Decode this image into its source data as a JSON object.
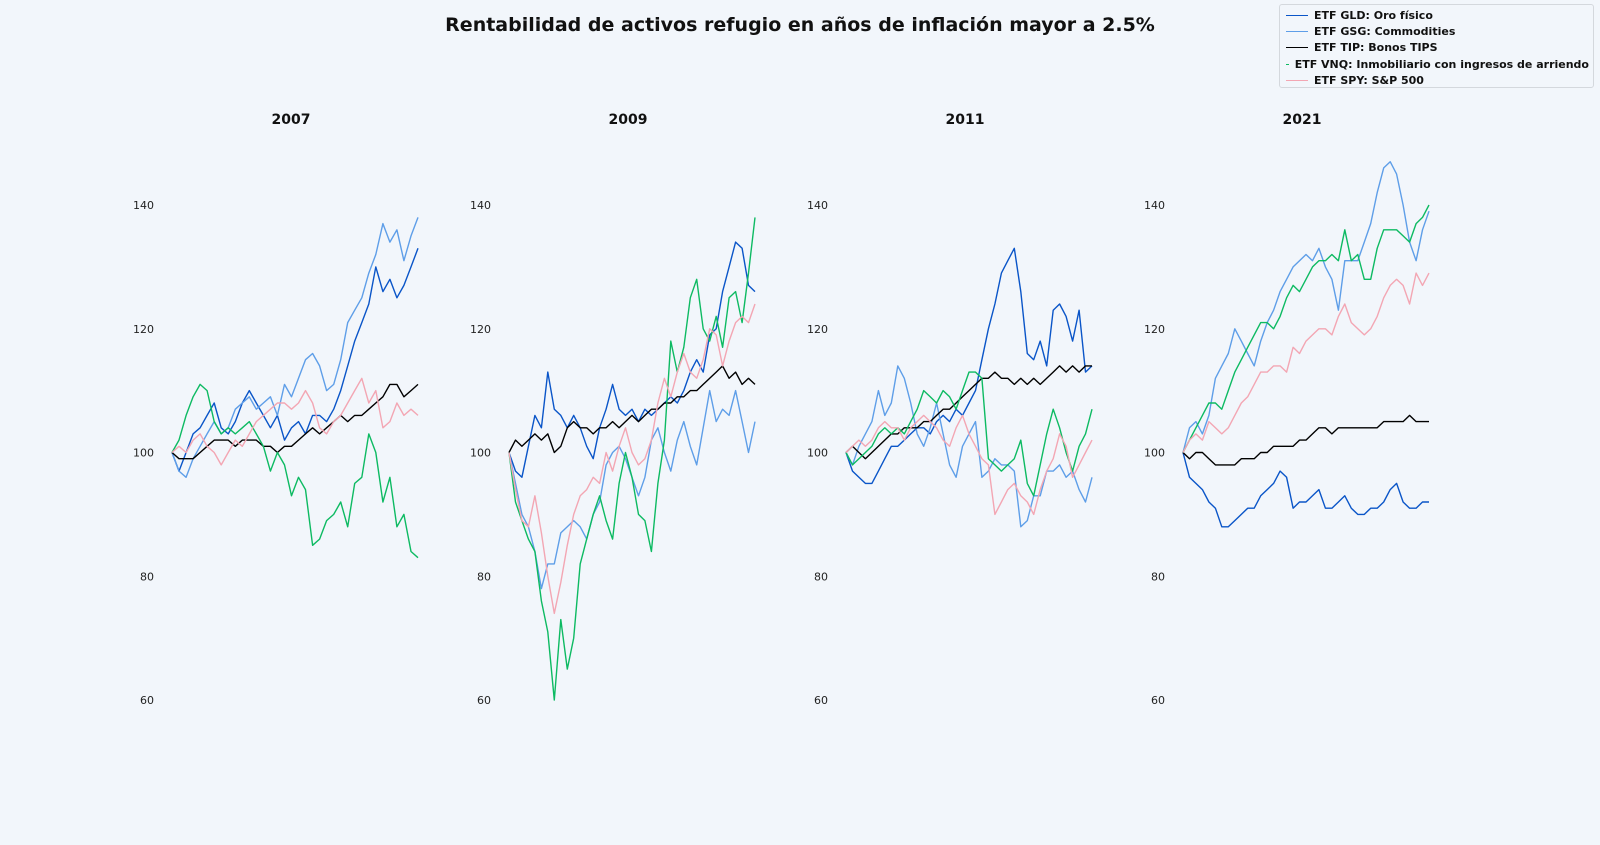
{
  "title": "Rentabilidad de activos refugio en años de inflación mayor a 2.5%",
  "legend": [
    {
      "label": "ETF GLD: Oro físico",
      "color": "#0a55c8"
    },
    {
      "label": "ETF GSG: Commodities",
      "color": "#5e9ee8"
    },
    {
      "label": "ETF TIP: Bonos TIPS",
      "color": "#000000"
    },
    {
      "label": "ETF VNQ: Inmobiliario con ingresos de arriendo",
      "color": "#0dba62"
    },
    {
      "label": "ETF SPY: S&P 500",
      "color": "#f3a6b3"
    }
  ],
  "chart_data": [
    {
      "type": "line",
      "title": "2007",
      "ylim": [
        60,
        140
      ],
      "yticks": [
        60,
        80,
        100,
        120,
        140
      ],
      "series": [
        {
          "name": "ETF GLD: Oro físico",
          "color": "#0a55c8",
          "values": [
            100,
            97,
            100,
            103,
            104,
            106,
            108,
            104,
            103,
            105,
            108,
            110,
            108,
            106,
            104,
            106,
            102,
            104,
            105,
            103,
            106,
            106,
            105,
            107,
            110,
            114,
            118,
            121,
            124,
            130,
            126,
            128,
            125,
            127,
            130,
            133
          ]
        },
        {
          "name": "ETF GSG: Commodities",
          "color": "#5e9ee8",
          "values": [
            100,
            97,
            96,
            99,
            101,
            103,
            105,
            103,
            104,
            107,
            108,
            109,
            107,
            108,
            109,
            106,
            111,
            109,
            112,
            115,
            116,
            114,
            110,
            111,
            115,
            121,
            123,
            125,
            129,
            132,
            137,
            134,
            136,
            131,
            135,
            138
          ]
        },
        {
          "name": "ETF TIP: Bonos TIPS",
          "color": "#000000",
          "values": [
            100,
            99,
            99,
            99,
            100,
            101,
            102,
            102,
            102,
            101,
            102,
            102,
            102,
            101,
            101,
            100,
            101,
            101,
            102,
            103,
            104,
            103,
            104,
            105,
            106,
            105,
            106,
            106,
            107,
            108,
            109,
            111,
            111,
            109,
            110,
            111
          ]
        },
        {
          "name": "ETF VNQ: Inmobiliario con ingresos de arriendo",
          "color": "#0dba62",
          "values": [
            100,
            102,
            106,
            109,
            111,
            110,
            105,
            103,
            104,
            103,
            104,
            105,
            103,
            101,
            97,
            100,
            98,
            93,
            96,
            94,
            85,
            86,
            89,
            90,
            92,
            88,
            95,
            96,
            103,
            100,
            92,
            96,
            88,
            90,
            84,
            83
          ]
        },
        {
          "name": "ETF SPY: S&P 500",
          "color": "#f3a6b3",
          "values": [
            100,
            101,
            100,
            102,
            103,
            101,
            100,
            98,
            100,
            102,
            101,
            103,
            105,
            106,
            107,
            108,
            108,
            107,
            108,
            110,
            108,
            104,
            103,
            105,
            106,
            108,
            110,
            112,
            108,
            110,
            104,
            105,
            108,
            106,
            107,
            106
          ]
        }
      ]
    },
    {
      "type": "line",
      "title": "2009",
      "ylim": [
        60,
        140
      ],
      "yticks": [
        60,
        80,
        100,
        120,
        140
      ],
      "series": [
        {
          "name": "ETF GLD: Oro físico",
          "color": "#0a55c8",
          "values": [
            100,
            97,
            96,
            101,
            106,
            104,
            113,
            107,
            106,
            104,
            106,
            104,
            101,
            99,
            104,
            107,
            111,
            107,
            106,
            107,
            105,
            107,
            106,
            107,
            108,
            109,
            108,
            110,
            113,
            115,
            113,
            119,
            120,
            126,
            130,
            134,
            133,
            127,
            126
          ]
        },
        {
          "name": "ETF GSG: Commodities",
          "color": "#5e9ee8",
          "values": [
            100,
            95,
            90,
            88,
            84,
            78,
            82,
            82,
            87,
            88,
            89,
            88,
            86,
            90,
            92,
            98,
            100,
            101,
            99,
            96,
            93,
            96,
            102,
            104,
            100,
            97,
            102,
            105,
            101,
            98,
            104,
            110,
            105,
            107,
            106,
            110,
            105,
            100,
            105
          ]
        },
        {
          "name": "ETF TIP: Bonos TIPS",
          "color": "#000000",
          "values": [
            100,
            102,
            101,
            102,
            103,
            102,
            103,
            100,
            101,
            104,
            105,
            104,
            104,
            103,
            104,
            104,
            105,
            104,
            105,
            106,
            105,
            106,
            107,
            107,
            108,
            108,
            109,
            109,
            110,
            110,
            111,
            112,
            113,
            114,
            112,
            113,
            111,
            112,
            111
          ]
        },
        {
          "name": "ETF VNQ: Inmobiliario con ingresos de arriendo",
          "color": "#0dba62",
          "values": [
            100,
            92,
            89,
            86,
            84,
            76,
            71,
            60,
            73,
            65,
            70,
            82,
            86,
            90,
            93,
            89,
            86,
            95,
            100,
            96,
            90,
            89,
            84,
            95,
            102,
            118,
            113,
            117,
            125,
            128,
            120,
            118,
            122,
            117,
            125,
            126,
            121,
            129,
            138
          ]
        },
        {
          "name": "ETF SPY: S&P 500",
          "color": "#f3a6b3",
          "values": [
            100,
            94,
            89,
            88,
            93,
            87,
            80,
            74,
            79,
            85,
            90,
            93,
            94,
            96,
            95,
            100,
            97,
            101,
            104,
            100,
            98,
            99,
            102,
            108,
            112,
            109,
            113,
            116,
            113,
            112,
            115,
            120,
            119,
            114,
            118,
            121,
            122,
            121,
            124
          ]
        }
      ]
    },
    {
      "type": "line",
      "title": "2011",
      "ylim": [
        60,
        140
      ],
      "yticks": [
        60,
        80,
        100,
        120,
        140
      ],
      "series": [
        {
          "name": "ETF GLD: Oro físico",
          "color": "#0a55c8",
          "values": [
            100,
            97,
            96,
            95,
            95,
            97,
            99,
            101,
            101,
            102,
            103,
            104,
            104,
            103,
            105,
            106,
            105,
            107,
            106,
            108,
            110,
            115,
            120,
            124,
            129,
            131,
            133,
            126,
            116,
            115,
            118,
            114,
            123,
            124,
            122,
            118,
            123,
            113,
            114
          ]
        },
        {
          "name": "ETF GSG: Commodities",
          "color": "#5e9ee8",
          "values": [
            100,
            98,
            101,
            103,
            105,
            110,
            106,
            108,
            114,
            112,
            108,
            103,
            101,
            104,
            108,
            103,
            98,
            96,
            101,
            103,
            105,
            96,
            97,
            99,
            98,
            98,
            97,
            88,
            89,
            93,
            93,
            97,
            97,
            98,
            96,
            97,
            94,
            92,
            96
          ]
        },
        {
          "name": "ETF TIP: Bonos TIPS",
          "color": "#000000",
          "values": [
            100,
            101,
            100,
            99,
            100,
            101,
            102,
            103,
            103,
            104,
            104,
            104,
            105,
            105,
            106,
            107,
            107,
            108,
            109,
            110,
            111,
            112,
            112,
            113,
            112,
            112,
            111,
            112,
            111,
            112,
            111,
            112,
            113,
            114,
            113,
            114,
            113,
            114,
            114
          ]
        },
        {
          "name": "ETF VNQ: Inmobiliario con ingresos de arriendo",
          "color": "#0dba62",
          "values": [
            100,
            98,
            99,
            100,
            101,
            103,
            104,
            103,
            104,
            103,
            105,
            107,
            110,
            109,
            108,
            110,
            109,
            107,
            110,
            113,
            113,
            112,
            99,
            98,
            97,
            98,
            99,
            102,
            95,
            93,
            98,
            103,
            107,
            104,
            100,
            97,
            101,
            103,
            107
          ]
        },
        {
          "name": "ETF SPY: S&P 500",
          "color": "#f3a6b3",
          "values": [
            100,
            101,
            102,
            101,
            102,
            104,
            105,
            104,
            104,
            102,
            104,
            105,
            106,
            105,
            104,
            102,
            101,
            104,
            106,
            103,
            101,
            99,
            98,
            90,
            92,
            94,
            95,
            93,
            92,
            90,
            94,
            97,
            99,
            103,
            101,
            96,
            98,
            100,
            102
          ]
        }
      ]
    },
    {
      "type": "line",
      "title": "2021",
      "ylim": [
        60,
        140
      ],
      "yticks": [
        60,
        80,
        100,
        120,
        140
      ],
      "series": [
        {
          "name": "ETF GLD: Oro físico",
          "color": "#0a55c8",
          "values": [
            100,
            96,
            95,
            94,
            92,
            91,
            88,
            88,
            89,
            90,
            91,
            91,
            93,
            94,
            95,
            97,
            96,
            91,
            92,
            92,
            93,
            94,
            91,
            91,
            92,
            93,
            91,
            90,
            90,
            91,
            91,
            92,
            94,
            95,
            92,
            91,
            91,
            92,
            92
          ]
        },
        {
          "name": "ETF GSG: Commodities",
          "color": "#5e9ee8",
          "values": [
            100,
            104,
            105,
            103,
            106,
            112,
            114,
            116,
            120,
            118,
            116,
            114,
            118,
            121,
            123,
            126,
            128,
            130,
            131,
            132,
            131,
            133,
            130,
            128,
            123,
            131,
            131,
            131,
            134,
            137,
            142,
            146,
            147,
            145,
            140,
            134,
            131,
            136,
            139
          ]
        },
        {
          "name": "ETF TIP: Bonos TIPS",
          "color": "#000000",
          "values": [
            100,
            99,
            100,
            100,
            99,
            98,
            98,
            98,
            98,
            99,
            99,
            99,
            100,
            100,
            101,
            101,
            101,
            101,
            102,
            102,
            103,
            104,
            104,
            103,
            104,
            104,
            104,
            104,
            104,
            104,
            104,
            105,
            105,
            105,
            105,
            106,
            105,
            105,
            105
          ]
        },
        {
          "name": "ETF VNQ: Inmobiliario con ingresos de arriendo",
          "color": "#0dba62",
          "values": [
            100,
            102,
            104,
            106,
            108,
            108,
            107,
            110,
            113,
            115,
            117,
            119,
            121,
            121,
            120,
            122,
            125,
            127,
            126,
            128,
            130,
            131,
            131,
            132,
            131,
            136,
            131,
            132,
            128,
            128,
            133,
            136,
            136,
            136,
            135,
            134,
            137,
            138,
            140
          ]
        },
        {
          "name": "ETF SPY: S&P 500",
          "color": "#f3a6b3",
          "values": [
            100,
            102,
            103,
            102,
            105,
            104,
            103,
            104,
            106,
            108,
            109,
            111,
            113,
            113,
            114,
            114,
            113,
            117,
            116,
            118,
            119,
            120,
            120,
            119,
            122,
            124,
            121,
            120,
            119,
            120,
            122,
            125,
            127,
            128,
            127,
            124,
            129,
            127,
            129
          ]
        }
      ]
    }
  ]
}
